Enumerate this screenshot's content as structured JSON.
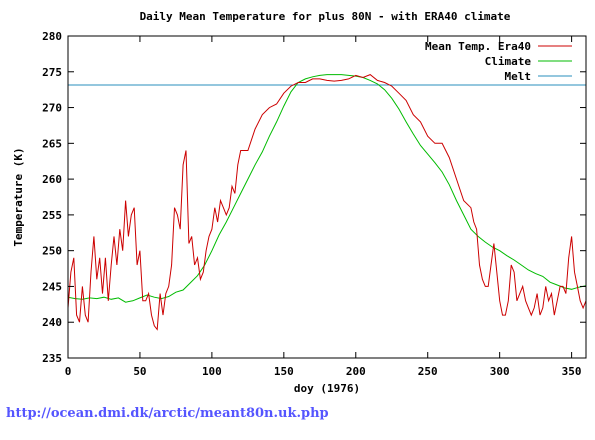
{
  "footer": {
    "link_text": "http://ocean.dmi.dk/arctic/meant80n.uk.php"
  },
  "chart_data": {
    "type": "line",
    "title": "Daily Mean Temperature for plus 80N - with ERA40 climate",
    "xlabel": "doy (1976)",
    "ylabel": "Temperature (K)",
    "xlim": [
      0,
      360
    ],
    "ylim": [
      235,
      280
    ],
    "xticks": [
      0,
      50,
      100,
      150,
      200,
      250,
      300,
      350
    ],
    "yticks": [
      235,
      240,
      245,
      250,
      255,
      260,
      265,
      270,
      275,
      280
    ],
    "grid": false,
    "legend": "top-right",
    "series": [
      {
        "name": "Mean Temp. Era40",
        "color": "#cc0000",
        "x": [
          0,
          2,
          4,
          6,
          8,
          10,
          12,
          14,
          16,
          18,
          20,
          22,
          24,
          26,
          28,
          30,
          32,
          34,
          36,
          38,
          40,
          42,
          44,
          46,
          48,
          50,
          52,
          54,
          56,
          58,
          60,
          62,
          64,
          66,
          68,
          70,
          72,
          74,
          76,
          78,
          80,
          82,
          84,
          86,
          88,
          90,
          92,
          94,
          96,
          98,
          100,
          102,
          104,
          106,
          108,
          110,
          112,
          114,
          116,
          118,
          120,
          125,
          130,
          135,
          140,
          145,
          150,
          155,
          160,
          165,
          170,
          175,
          180,
          185,
          190,
          195,
          200,
          205,
          210,
          215,
          220,
          225,
          230,
          235,
          240,
          245,
          250,
          255,
          260,
          265,
          270,
          275,
          280,
          282,
          284,
          286,
          288,
          290,
          292,
          294,
          296,
          298,
          300,
          302,
          304,
          306,
          308,
          310,
          312,
          314,
          316,
          318,
          320,
          322,
          324,
          326,
          328,
          330,
          332,
          334,
          336,
          338,
          340,
          342,
          344,
          346,
          348,
          350,
          352,
          354,
          356,
          358,
          360
        ],
        "y": [
          242,
          247,
          249,
          241,
          240,
          245,
          241,
          240,
          247,
          252,
          246,
          249,
          244,
          249,
          243,
          248,
          252,
          248,
          253,
          250,
          257,
          252,
          255,
          256,
          248,
          250,
          243,
          243,
          244,
          241,
          239.5,
          239,
          244,
          241,
          244,
          245,
          248,
          256,
          255,
          253,
          262,
          264,
          251,
          252,
          248,
          249,
          246,
          247,
          250,
          252,
          253,
          256,
          254,
          257,
          256,
          255,
          256,
          259,
          258,
          262,
          264,
          264,
          267,
          269,
          270,
          270.5,
          272,
          273,
          273.5,
          273.5,
          274,
          274,
          273.8,
          273.7,
          273.8,
          274,
          274.5,
          274.2,
          274.6,
          273.8,
          273.5,
          273,
          272,
          271,
          269,
          268,
          266,
          265,
          265,
          263,
          260,
          257,
          256,
          254,
          253,
          248,
          246,
          245,
          245,
          248,
          251,
          247,
          243,
          241,
          241,
          243,
          248,
          247,
          243,
          244,
          245,
          243,
          242,
          241,
          242,
          244,
          241,
          242,
          245,
          243,
          244,
          241,
          243,
          245,
          245,
          244,
          249,
          252,
          247,
          245,
          243,
          242,
          243
        ]
      },
      {
        "name": "Climate",
        "color": "#00bb00",
        "x": [
          0,
          5,
          10,
          15,
          20,
          25,
          30,
          35,
          40,
          45,
          50,
          55,
          60,
          65,
          70,
          75,
          80,
          85,
          90,
          95,
          100,
          105,
          110,
          115,
          120,
          125,
          130,
          135,
          140,
          145,
          150,
          155,
          160,
          165,
          170,
          175,
          180,
          185,
          190,
          195,
          200,
          205,
          210,
          215,
          220,
          225,
          230,
          235,
          240,
          245,
          250,
          255,
          260,
          265,
          270,
          275,
          280,
          285,
          290,
          295,
          300,
          305,
          310,
          315,
          320,
          325,
          330,
          335,
          340,
          345,
          350,
          355,
          360
        ],
        "y": [
          243.5,
          243.3,
          243.2,
          243.4,
          243.3,
          243.5,
          243.2,
          243.4,
          242.8,
          243,
          243.4,
          243.8,
          243.5,
          243.3,
          243.6,
          244.2,
          244.5,
          245.5,
          246.5,
          248,
          250,
          252.2,
          254,
          256,
          258,
          260,
          262,
          263.8,
          266,
          268,
          270.2,
          272.2,
          273.5,
          274,
          274.3,
          274.5,
          274.6,
          274.6,
          274.6,
          274.5,
          274.4,
          274.2,
          273.8,
          273.3,
          272.5,
          271.3,
          269.8,
          268,
          266.3,
          264.7,
          263.5,
          262.3,
          261,
          259.2,
          257,
          255,
          253,
          252,
          251.2,
          250.5,
          250,
          249.3,
          248.7,
          248,
          247.3,
          246.8,
          246.4,
          245.6,
          245.2,
          244.8,
          244.6,
          244.9,
          245.1
        ]
      },
      {
        "name": "Melt",
        "color": "#2a8fbd",
        "x": [
          0,
          360
        ],
        "y": [
          273.15,
          273.15
        ]
      }
    ]
  }
}
